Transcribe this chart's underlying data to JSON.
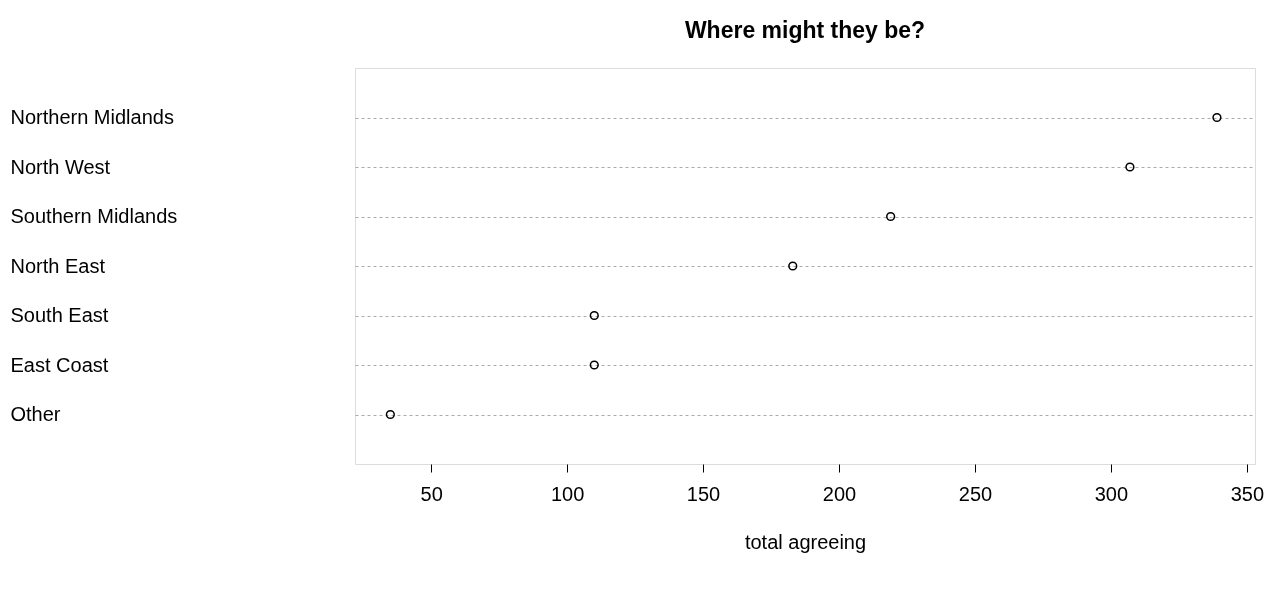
{
  "chart_data": {
    "type": "scatter",
    "orientation": "horizontal",
    "title": "Where might they be?",
    "xlabel": "total agreeing",
    "categories": [
      "Northern Midlands",
      "North West",
      "Southern Midlands",
      "North East",
      "South East",
      "East Coast",
      "Other"
    ],
    "values": [
      339,
      307,
      219,
      183,
      110,
      110,
      35
    ],
    "color": "#000000",
    "xlim": [
      22,
      353
    ],
    "xticks": [
      50,
      100,
      150,
      200,
      250,
      300,
      350
    ],
    "grid": "y",
    "marker": "circle"
  }
}
